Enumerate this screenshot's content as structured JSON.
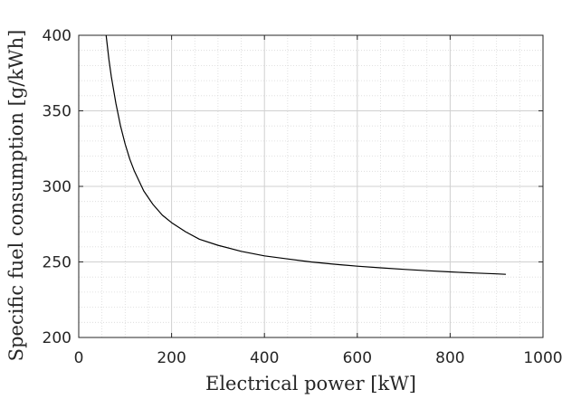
{
  "chart_data": {
    "type": "line",
    "title": "",
    "xlabel": "Electrical power [kW]",
    "ylabel": "Specific fuel consumption [g/kWh]",
    "xlim": [
      0,
      1000
    ],
    "ylim": [
      200,
      400
    ],
    "xticks": [
      0,
      200,
      400,
      600,
      800,
      1000
    ],
    "yticks": [
      200,
      250,
      300,
      350,
      400
    ],
    "grid": true,
    "minor_grid": true,
    "legend": "none",
    "line_color": "#000000",
    "series": [
      {
        "x": [
          59,
          65,
          70,
          80,
          90,
          100,
          110,
          120,
          140,
          160,
          180,
          200,
          230,
          260,
          300,
          350,
          400,
          450,
          500,
          550,
          600,
          650,
          700,
          750,
          800,
          850,
          900,
          920
        ],
        "y": [
          400,
          384,
          373,
          355,
          340,
          328,
          318,
          310,
          297,
          288,
          281,
          276,
          270,
          265,
          261,
          257,
          254,
          252,
          250,
          248.5,
          247.2,
          246.1,
          245.1,
          244.2,
          243.4,
          242.7,
          242.1,
          241.8
        ]
      }
    ]
  }
}
